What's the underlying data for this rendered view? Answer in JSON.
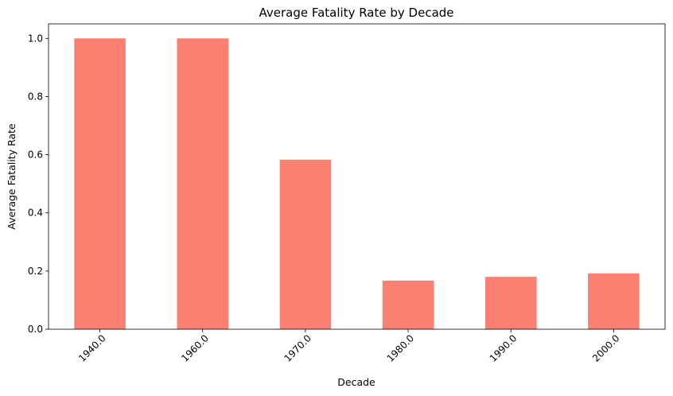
{
  "chart_data": {
    "type": "bar",
    "title": "Average Fatality Rate by Decade",
    "xlabel": "Decade",
    "ylabel": "Average Fatality Rate",
    "categories": [
      "1940.0",
      "1960.0",
      "1970.0",
      "1980.0",
      "1990.0",
      "2000.0"
    ],
    "values": [
      1.0,
      1.0,
      0.583,
      0.167,
      0.18,
      0.192
    ],
    "ylim": [
      0,
      1.05
    ],
    "yticks": [
      "0.0",
      "0.2",
      "0.4",
      "0.6",
      "0.8",
      "1.0"
    ],
    "bar_color": "#FA8072",
    "grid": false,
    "legend": "none"
  }
}
